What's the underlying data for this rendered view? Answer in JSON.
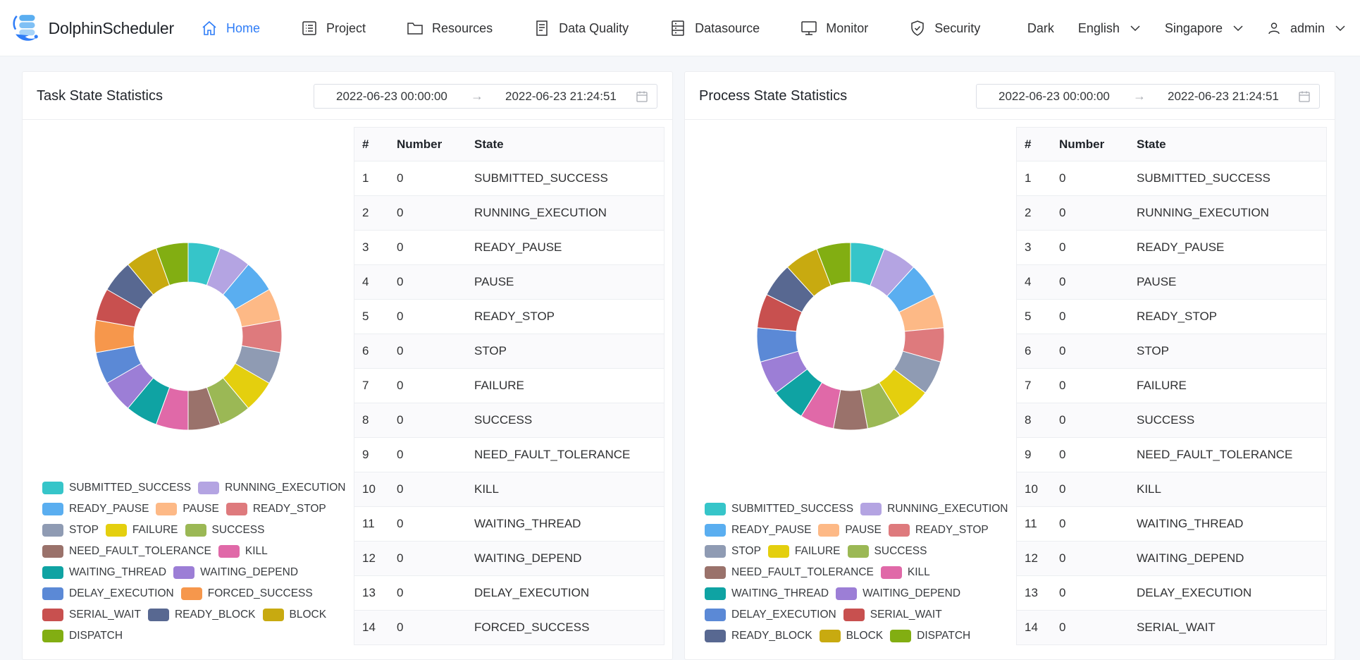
{
  "app": {
    "name": "DolphinScheduler"
  },
  "nav": [
    {
      "id": "home",
      "label": "Home",
      "icon": "home-icon",
      "active": true
    },
    {
      "id": "project",
      "label": "Project",
      "icon": "list-icon",
      "active": false
    },
    {
      "id": "resources",
      "label": "Resources",
      "icon": "folder-icon",
      "active": false
    },
    {
      "id": "data-quality",
      "label": "Data Quality",
      "icon": "document-icon",
      "active": false
    },
    {
      "id": "datasource",
      "label": "Datasource",
      "icon": "database-icon",
      "active": false
    },
    {
      "id": "monitor",
      "label": "Monitor",
      "icon": "monitor-icon",
      "active": false
    },
    {
      "id": "security",
      "label": "Security",
      "icon": "shield-icon",
      "active": false
    }
  ],
  "header_right": {
    "theme": "Dark",
    "language": "English",
    "timezone": "Singapore",
    "user": "admin"
  },
  "colors": {
    "SUBMITTED_SUCCESS": "#36c5c9",
    "RUNNING_EXECUTION": "#b4a4e2",
    "READY_PAUSE": "#5aaef0",
    "PAUSE": "#fdb986",
    "READY_STOP": "#de7a7d",
    "STOP": "#8f9bb3",
    "FAILURE": "#e4cf0e",
    "SUCCESS": "#9bb855",
    "NEED_FAULT_TOLERANCE": "#9a726b",
    "KILL": "#e069a8",
    "WAITING_THREAD": "#0fa3a3",
    "WAITING_DEPEND": "#9c7ed6",
    "DELAY_EXECUTION": "#5b89d6",
    "FORCED_SUCCESS": "#f6974c",
    "SERIAL_WAIT": "#c8504f",
    "READY_BLOCK": "#586891",
    "BLOCK": "#c8aa10",
    "DISPATCH": "#82ae12"
  },
  "task": {
    "title": "Task State Statistics",
    "start": "2022-06-23 00:00:00",
    "end": "2022-06-23 21:24:51",
    "columns": [
      "#",
      "Number",
      "State"
    ],
    "states": [
      "SUBMITTED_SUCCESS",
      "RUNNING_EXECUTION",
      "READY_PAUSE",
      "PAUSE",
      "READY_STOP",
      "STOP",
      "FAILURE",
      "SUCCESS",
      "NEED_FAULT_TOLERANCE",
      "KILL",
      "WAITING_THREAD",
      "WAITING_DEPEND",
      "DELAY_EXECUTION",
      "FORCED_SUCCESS",
      "SERIAL_WAIT",
      "READY_BLOCK",
      "BLOCK",
      "DISPATCH"
    ],
    "rows": [
      {
        "no": "1",
        "number": "0",
        "state": "SUBMITTED_SUCCESS"
      },
      {
        "no": "2",
        "number": "0",
        "state": "RUNNING_EXECUTION"
      },
      {
        "no": "3",
        "number": "0",
        "state": "READY_PAUSE"
      },
      {
        "no": "4",
        "number": "0",
        "state": "PAUSE"
      },
      {
        "no": "5",
        "number": "0",
        "state": "READY_STOP"
      },
      {
        "no": "6",
        "number": "0",
        "state": "STOP"
      },
      {
        "no": "7",
        "number": "0",
        "state": "FAILURE"
      },
      {
        "no": "8",
        "number": "0",
        "state": "SUCCESS"
      },
      {
        "no": "9",
        "number": "0",
        "state": "NEED_FAULT_TOLERANCE"
      },
      {
        "no": "10",
        "number": "0",
        "state": "KILL"
      },
      {
        "no": "11",
        "number": "0",
        "state": "WAITING_THREAD"
      },
      {
        "no": "12",
        "number": "0",
        "state": "WAITING_DEPEND"
      },
      {
        "no": "13",
        "number": "0",
        "state": "DELAY_EXECUTION"
      },
      {
        "no": "14",
        "number": "0",
        "state": "FORCED_SUCCESS"
      }
    ],
    "legend_rows": [
      [
        "SUBMITTED_SUCCESS",
        "RUNNING_EXECUTION"
      ],
      [
        "READY_PAUSE",
        "PAUSE",
        "READY_STOP"
      ],
      [
        "STOP",
        "FAILURE",
        "SUCCESS"
      ],
      [
        "NEED_FAULT_TOLERANCE",
        "KILL"
      ],
      [
        "WAITING_THREAD",
        "WAITING_DEPEND"
      ],
      [
        "DELAY_EXECUTION",
        "FORCED_SUCCESS"
      ],
      [
        "SERIAL_WAIT",
        "READY_BLOCK",
        "BLOCK"
      ],
      [
        "DISPATCH"
      ]
    ]
  },
  "process": {
    "title": "Process State Statistics",
    "start": "2022-06-23 00:00:00",
    "end": "2022-06-23 21:24:51",
    "columns": [
      "#",
      "Number",
      "State"
    ],
    "states": [
      "SUBMITTED_SUCCESS",
      "RUNNING_EXECUTION",
      "READY_PAUSE",
      "PAUSE",
      "READY_STOP",
      "STOP",
      "FAILURE",
      "SUCCESS",
      "NEED_FAULT_TOLERANCE",
      "KILL",
      "WAITING_THREAD",
      "WAITING_DEPEND",
      "DELAY_EXECUTION",
      "SERIAL_WAIT",
      "READY_BLOCK",
      "BLOCK",
      "DISPATCH"
    ],
    "rows": [
      {
        "no": "1",
        "number": "0",
        "state": "SUBMITTED_SUCCESS"
      },
      {
        "no": "2",
        "number": "0",
        "state": "RUNNING_EXECUTION"
      },
      {
        "no": "3",
        "number": "0",
        "state": "READY_PAUSE"
      },
      {
        "no": "4",
        "number": "0",
        "state": "PAUSE"
      },
      {
        "no": "5",
        "number": "0",
        "state": "READY_STOP"
      },
      {
        "no": "6",
        "number": "0",
        "state": "STOP"
      },
      {
        "no": "7",
        "number": "0",
        "state": "FAILURE"
      },
      {
        "no": "8",
        "number": "0",
        "state": "SUCCESS"
      },
      {
        "no": "9",
        "number": "0",
        "state": "NEED_FAULT_TOLERANCE"
      },
      {
        "no": "10",
        "number": "0",
        "state": "KILL"
      },
      {
        "no": "11",
        "number": "0",
        "state": "WAITING_THREAD"
      },
      {
        "no": "12",
        "number": "0",
        "state": "WAITING_DEPEND"
      },
      {
        "no": "13",
        "number": "0",
        "state": "DELAY_EXECUTION"
      },
      {
        "no": "14",
        "number": "0",
        "state": "SERIAL_WAIT"
      }
    ],
    "legend_rows": [
      [
        "SUBMITTED_SUCCESS",
        "RUNNING_EXECUTION"
      ],
      [
        "READY_PAUSE",
        "PAUSE",
        "READY_STOP"
      ],
      [
        "STOP",
        "FAILURE",
        "SUCCESS"
      ],
      [
        "NEED_FAULT_TOLERANCE",
        "KILL"
      ],
      [
        "WAITING_THREAD",
        "WAITING_DEPEND"
      ],
      [
        "DELAY_EXECUTION",
        "SERIAL_WAIT"
      ],
      [
        "READY_BLOCK",
        "BLOCK",
        "DISPATCH"
      ]
    ]
  }
}
